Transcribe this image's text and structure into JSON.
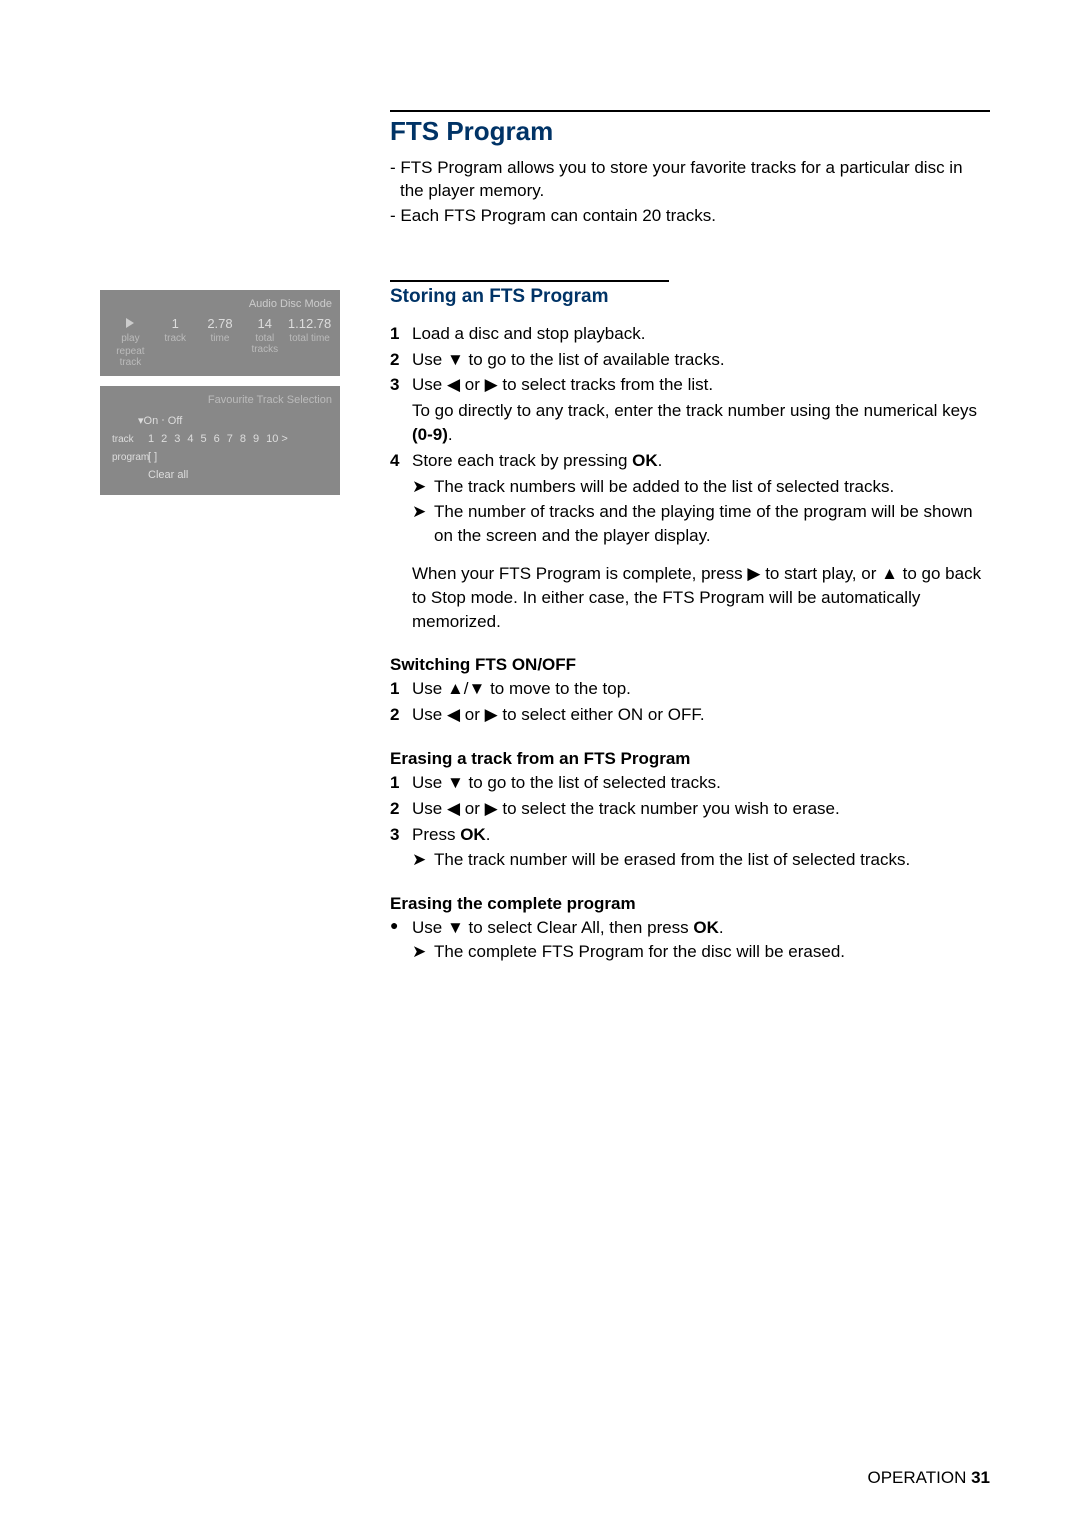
{
  "section_title": "FTS Program",
  "intro": [
    "- FTS Program allows you to store your favorite tracks for a particular disc in the player memory.",
    "- Each FTS Program can contain 20 tracks."
  ],
  "osd": {
    "top_title": "Audio Disc Mode",
    "cells": [
      {
        "val": "▶",
        "lab1": "play",
        "lab2": "repeat track"
      },
      {
        "val": "1",
        "lab1": "track",
        "lab2": ""
      },
      {
        "val": "2.78",
        "lab1": "time",
        "lab2": ""
      },
      {
        "val": "14",
        "lab1": "total tracks",
        "lab2": ""
      },
      {
        "val": "1.12.78",
        "lab1": "total time",
        "lab2": ""
      }
    ],
    "bot_title": "Favourite Track Selection",
    "toggle": "▾On  ‧ Off",
    "track_label": "track",
    "tracks": [
      "1",
      "2",
      "3",
      "4",
      "5",
      "6",
      "7",
      "8",
      "9",
      "10 >"
    ],
    "program_label": "program",
    "program_val": "[ ]",
    "clear": "Clear all"
  },
  "storing": {
    "title": "Storing an FTS Program",
    "steps": [
      {
        "n": "1",
        "t": "Load a disc and stop playback."
      },
      {
        "n": "2",
        "t_parts": [
          "Use ",
          "▼",
          " to go to the list of available tracks."
        ]
      },
      {
        "n": "3",
        "t_parts": [
          "Use ",
          "◀",
          " or ",
          "▶",
          " to select tracks from the list."
        ],
        "extra_parts": [
          "To go directly to any track, enter the track number using the numerical keys ",
          "(0-9)",
          "."
        ]
      },
      {
        "n": "4",
        "t_parts": [
          "Store each track by pressing ",
          "OK",
          "."
        ]
      }
    ],
    "results": [
      "The track numbers will be added to the list of selected tracks.",
      "The number of tracks and the playing time of the program will be shown on the screen and the player display."
    ],
    "para_parts": [
      "When your FTS Program is complete, press ",
      "▶",
      " to start play, or ",
      "▲",
      " to go back to Stop mode. In either case, the FTS Program will be automatically memorized."
    ]
  },
  "switching": {
    "title": "Switching FTS ON/OFF",
    "steps": [
      {
        "n": "1",
        "t_parts": [
          "Use ",
          "▲/▼",
          " to move to the top."
        ]
      },
      {
        "n": "2",
        "t_parts": [
          "Use ",
          "◀",
          " or ",
          "▶",
          " to select either ON or OFF."
        ]
      }
    ]
  },
  "erasing_track": {
    "title": "Erasing a track from an FTS Program",
    "steps": [
      {
        "n": "1",
        "t_parts": [
          "Use ",
          "▼",
          " to go to the list of selected tracks."
        ]
      },
      {
        "n": "2",
        "t_parts": [
          "Use ",
          "◀",
          " or ",
          "▶",
          " to select the track number you wish to erase."
        ]
      },
      {
        "n": "3",
        "t_parts": [
          "Press ",
          "OK",
          "."
        ]
      }
    ],
    "result": "The track number will be erased from the list of selected tracks."
  },
  "erasing_all": {
    "title": "Erasing the complete program",
    "bullet_parts": [
      "Use ",
      "▼",
      " to select Clear All, then press ",
      "OK",
      "."
    ],
    "result": "The complete FTS Program for the disc will be erased."
  },
  "footer": {
    "label": "OPERATION ",
    "page": "31"
  }
}
